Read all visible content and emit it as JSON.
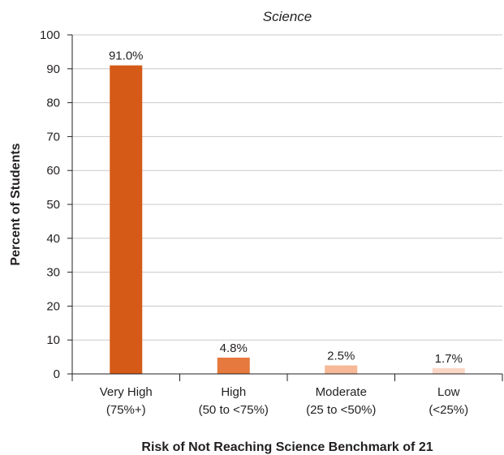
{
  "chart_data": {
    "type": "bar",
    "title": "Science",
    "xlabel": "Risk of Not Reaching Science Benchmark of 21",
    "ylabel": "Percent of Students",
    "ylim": [
      0,
      100
    ],
    "yticks": [
      "0",
      "10",
      "20",
      "30",
      "40",
      "50",
      "60",
      "70",
      "80",
      "90",
      "100"
    ],
    "grid": true,
    "categories": [
      {
        "line1": "Very High",
        "line2": "(75%+)"
      },
      {
        "line1": "High",
        "line2": "(50 to <75%)"
      },
      {
        "line1": "Moderate",
        "line2": "(25 to <50%)"
      },
      {
        "line1": "Low",
        "line2": "(<25%)"
      }
    ],
    "values": [
      91.0,
      4.8,
      2.5,
      1.7
    ],
    "data_labels": [
      "91.0%",
      "4.8%",
      "2.5%",
      "1.7%"
    ],
    "colors": [
      "#d55a17",
      "#e6793d",
      "#f6b896",
      "#fad7c6"
    ]
  }
}
